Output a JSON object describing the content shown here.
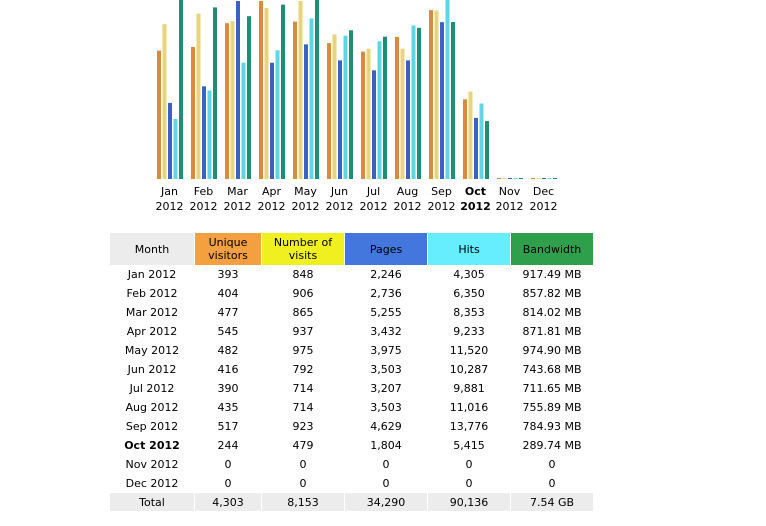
{
  "chart_data": {
    "type": "bar",
    "categories": [
      "Jan|2012",
      "Feb|2012",
      "Mar|2012",
      "Apr|2012",
      "May|2012",
      "Jun|2012",
      "Jul|2012",
      "Aug|2012",
      "Sep|2012",
      "Oct|2012",
      "Nov|2012",
      "Dec|2012"
    ],
    "current_index": 9,
    "series": [
      {
        "key": "unique_visitors",
        "color": "#d98a3a",
        "values": [
          393,
          404,
          477,
          545,
          482,
          416,
          390,
          435,
          517,
          244,
          0,
          0
        ]
      },
      {
        "key": "visits",
        "color": "#e8d57a",
        "values": [
          848,
          906,
          865,
          937,
          975,
          792,
          714,
          714,
          923,
          479,
          0,
          0
        ]
      },
      {
        "key": "pages",
        "color": "#3a62c4",
        "values": [
          2246,
          2736,
          5255,
          3432,
          3975,
          3503,
          3207,
          3503,
          4629,
          1804,
          0,
          0
        ]
      },
      {
        "key": "hits",
        "color": "#5fd6e6",
        "values": [
          4305,
          6350,
          8353,
          9233,
          11520,
          10287,
          9881,
          11016,
          13776,
          5415,
          0,
          0
        ]
      },
      {
        "key": "bandwidth",
        "color": "#1d8f74",
        "values": [
          917.49,
          857.82,
          814.02,
          871.81,
          974.9,
          743.68,
          711.65,
          755.89,
          784.93,
          289.74,
          0,
          0
        ]
      }
    ]
  },
  "table": {
    "headers": {
      "month": "Month",
      "unique_visitors": "Unique visitors",
      "visits": "Number of visits",
      "pages": "Pages",
      "hits": "Hits",
      "bandwidth": "Bandwidth"
    },
    "rows": [
      {
        "month": "Jan 2012",
        "uv": "393",
        "nv": "848",
        "pages": "2,246",
        "hits": "4,305",
        "bw": "917.49 MB"
      },
      {
        "month": "Feb 2012",
        "uv": "404",
        "nv": "906",
        "pages": "2,736",
        "hits": "6,350",
        "bw": "857.82 MB"
      },
      {
        "month": "Mar 2012",
        "uv": "477",
        "nv": "865",
        "pages": "5,255",
        "hits": "8,353",
        "bw": "814.02 MB"
      },
      {
        "month": "Apr 2012",
        "uv": "545",
        "nv": "937",
        "pages": "3,432",
        "hits": "9,233",
        "bw": "871.81 MB"
      },
      {
        "month": "May 2012",
        "uv": "482",
        "nv": "975",
        "pages": "3,975",
        "hits": "11,520",
        "bw": "974.90 MB"
      },
      {
        "month": "Jun 2012",
        "uv": "416",
        "nv": "792",
        "pages": "3,503",
        "hits": "10,287",
        "bw": "743.68 MB"
      },
      {
        "month": "Jul 2012",
        "uv": "390",
        "nv": "714",
        "pages": "3,207",
        "hits": "9,881",
        "bw": "711.65 MB"
      },
      {
        "month": "Aug 2012",
        "uv": "435",
        "nv": "714",
        "pages": "3,503",
        "hits": "11,016",
        "bw": "755.89 MB"
      },
      {
        "month": "Sep 2012",
        "uv": "517",
        "nv": "923",
        "pages": "4,629",
        "hits": "13,776",
        "bw": "784.93 MB"
      },
      {
        "month": "Oct 2012",
        "uv": "244",
        "nv": "479",
        "pages": "1,804",
        "hits": "5,415",
        "bw": "289.74 MB"
      },
      {
        "month": "Nov 2012",
        "uv": "0",
        "nv": "0",
        "pages": "0",
        "hits": "0",
        "bw": "0"
      },
      {
        "month": "Dec 2012",
        "uv": "0",
        "nv": "0",
        "pages": "0",
        "hits": "0",
        "bw": "0"
      }
    ],
    "total": {
      "label": "Total",
      "uv": "4,303",
      "nv": "8,153",
      "pages": "34,290",
      "hits": "90,136",
      "bw": "7.54 GB"
    }
  }
}
